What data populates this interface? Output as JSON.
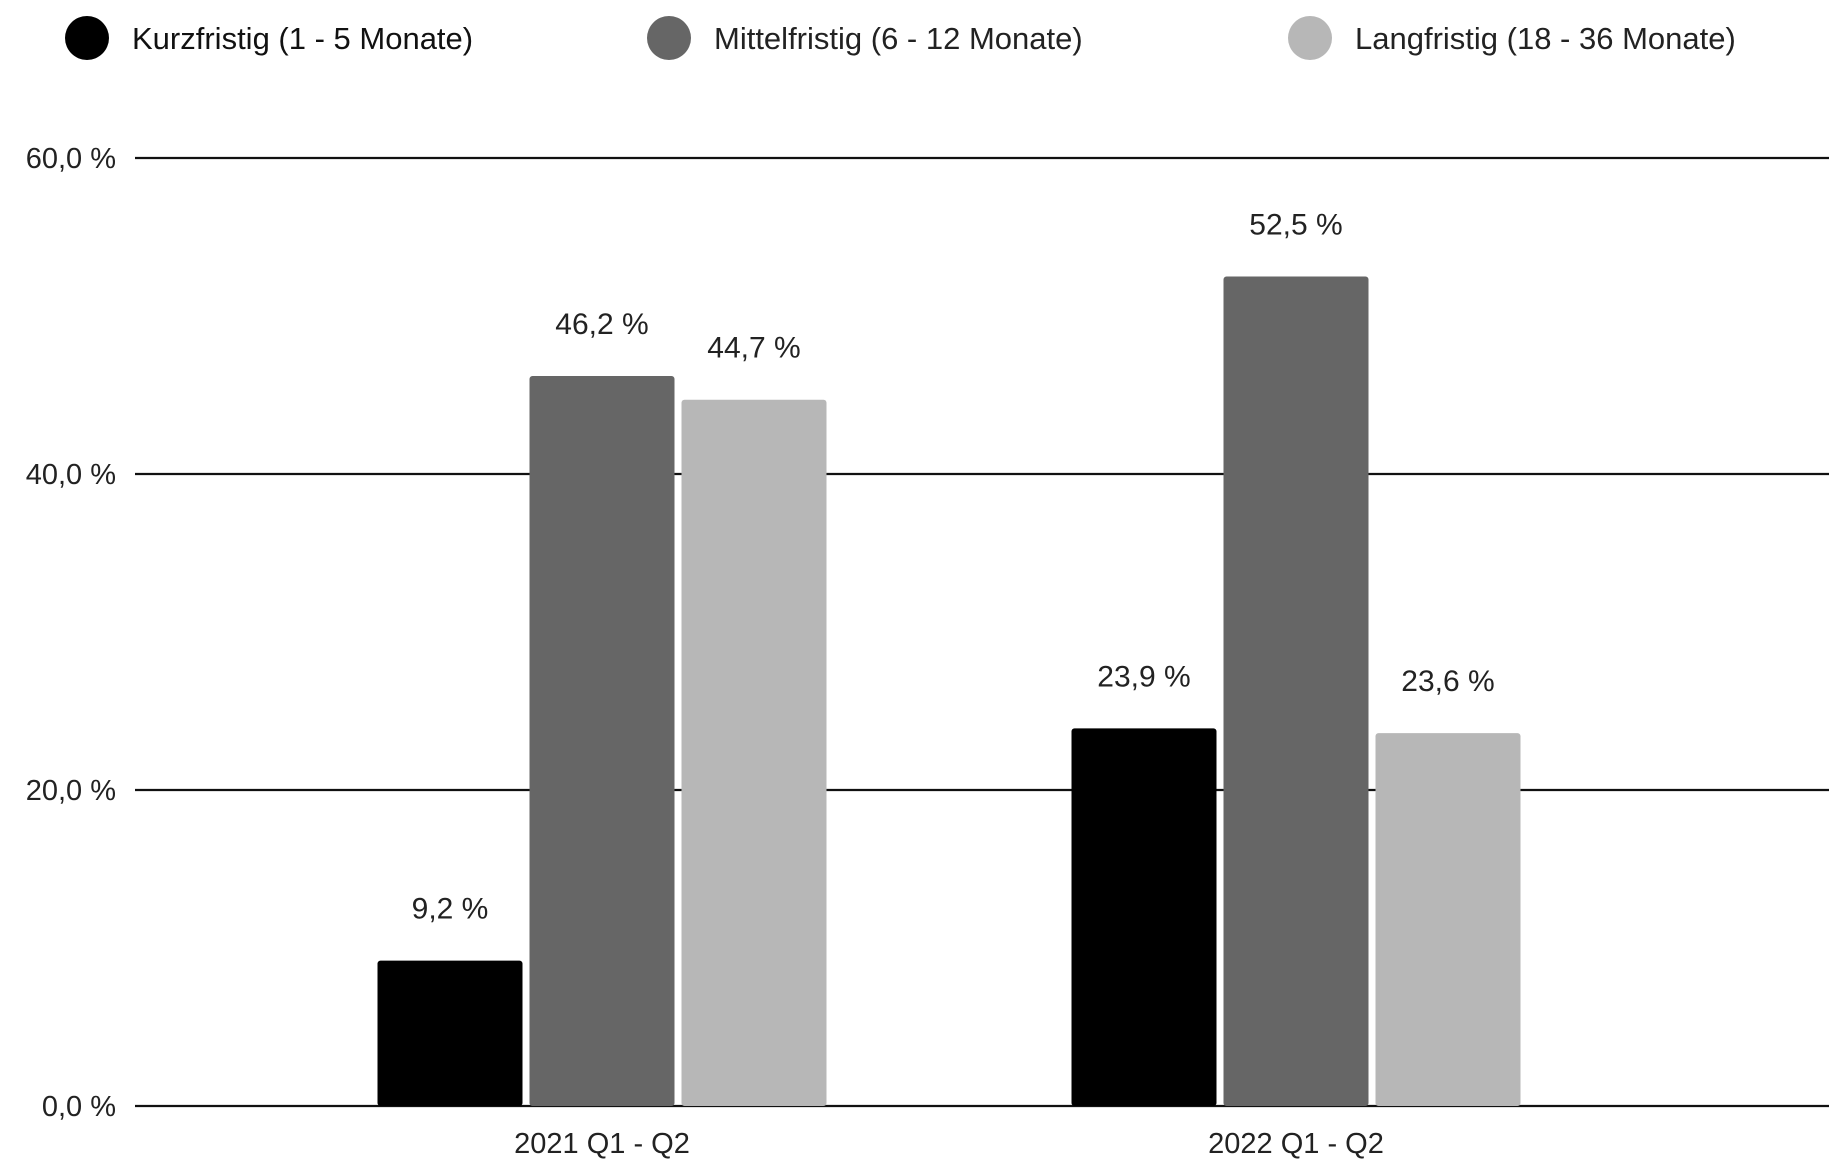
{
  "chart_data": {
    "type": "bar",
    "title": "",
    "xlabel": "",
    "ylabel": "",
    "categories": [
      "2021 Q1 - Q2",
      "2022 Q1 - Q2"
    ],
    "series": [
      {
        "name": "Kurzfristig (1 - 5 Monate)",
        "values": [
          9.2,
          23.9
        ],
        "labels": [
          "9,2 %",
          "23,9 %"
        ],
        "color": "#000000"
      },
      {
        "name": "Mittelfristig (6 - 12 Monate)",
        "values": [
          46.2,
          52.5
        ],
        "labels": [
          "46,2 %",
          "52,5 %"
        ],
        "color": "#666666"
      },
      {
        "name": "Langfristig (18 - 36 Monate)",
        "values": [
          44.7,
          23.6
        ],
        "labels": [
          "44,7 %",
          "23,6 %"
        ],
        "color": "#b7b7b7"
      }
    ],
    "ylim": [
      0,
      60
    ],
    "yticks": [
      0,
      20,
      40,
      60
    ],
    "ytick_labels": [
      "0,0 %",
      "20,0 %",
      "40,0 %",
      "60,0 %"
    ],
    "grid": true,
    "legend_position": "top"
  }
}
